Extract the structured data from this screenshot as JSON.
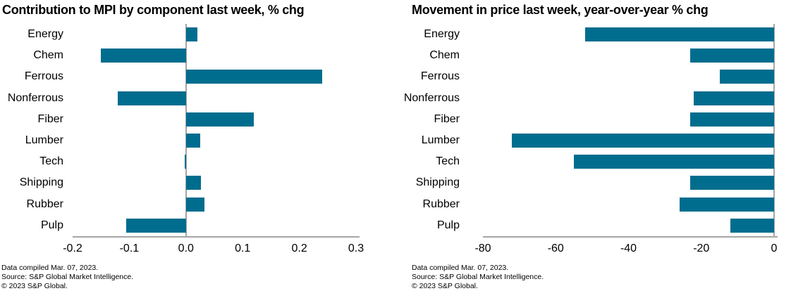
{
  "colors": {
    "bar": "#006d8e",
    "axis_line": "#a6a6a6",
    "text": "#000000"
  },
  "chart_data": [
    {
      "type": "bar",
      "orientation": "horizontal",
      "title": "Contribution to MPI by component last week, % chg",
      "categories": [
        "Energy",
        "Chem",
        "Ferrous",
        "Nonferrous",
        "Fiber",
        "Lumber",
        "Tech",
        "Shipping",
        "Rubber",
        "Pulp"
      ],
      "values": [
        0.02,
        -0.15,
        0.24,
        -0.12,
        0.12,
        0.025,
        -0.002,
        0.026,
        0.033,
        -0.105
      ],
      "xlabel": "",
      "ylabel": "",
      "xlim": [
        -0.2,
        0.3
      ],
      "grid": false,
      "legend": "none",
      "xticks": [
        {
          "value": -0.2,
          "label": "-0.2"
        },
        {
          "value": -0.1,
          "label": "-0.1"
        },
        {
          "value": 0.0,
          "label": "0.0"
        },
        {
          "value": 0.1,
          "label": "0.1"
        },
        {
          "value": 0.2,
          "label": "0.2"
        },
        {
          "value": 0.3,
          "label": "0.3"
        }
      ],
      "footnotes": [
        "Data compiled Mar. 07, 2023.",
        "Source: S&P Global Market Intelligence.",
        "© 2023 S&P Global."
      ]
    },
    {
      "type": "bar",
      "orientation": "horizontal",
      "title": "Movement in price last week, year-over-year % chg",
      "categories": [
        "Energy",
        "Chem",
        "Ferrous",
        "Nonferrous",
        "Fiber",
        "Lumber",
        "Tech",
        "Shipping",
        "Rubber",
        "Pulp"
      ],
      "values": [
        -52,
        -23,
        -15,
        -22,
        -23,
        -72,
        -55,
        -23,
        -26,
        -12
      ],
      "xlabel": "",
      "ylabel": "",
      "xlim": [
        -80,
        0
      ],
      "grid": false,
      "legend": "none",
      "xticks": [
        {
          "value": -80,
          "label": "-80"
        },
        {
          "value": -60,
          "label": "-60"
        },
        {
          "value": -40,
          "label": "-40"
        },
        {
          "value": -20,
          "label": "-20"
        },
        {
          "value": 0,
          "label": "0"
        }
      ],
      "footnotes": [
        "Data compiled Mar. 07, 2023.",
        "Source: S&P Global Market Intelligence.",
        "© 2023 S&P Global."
      ]
    }
  ]
}
